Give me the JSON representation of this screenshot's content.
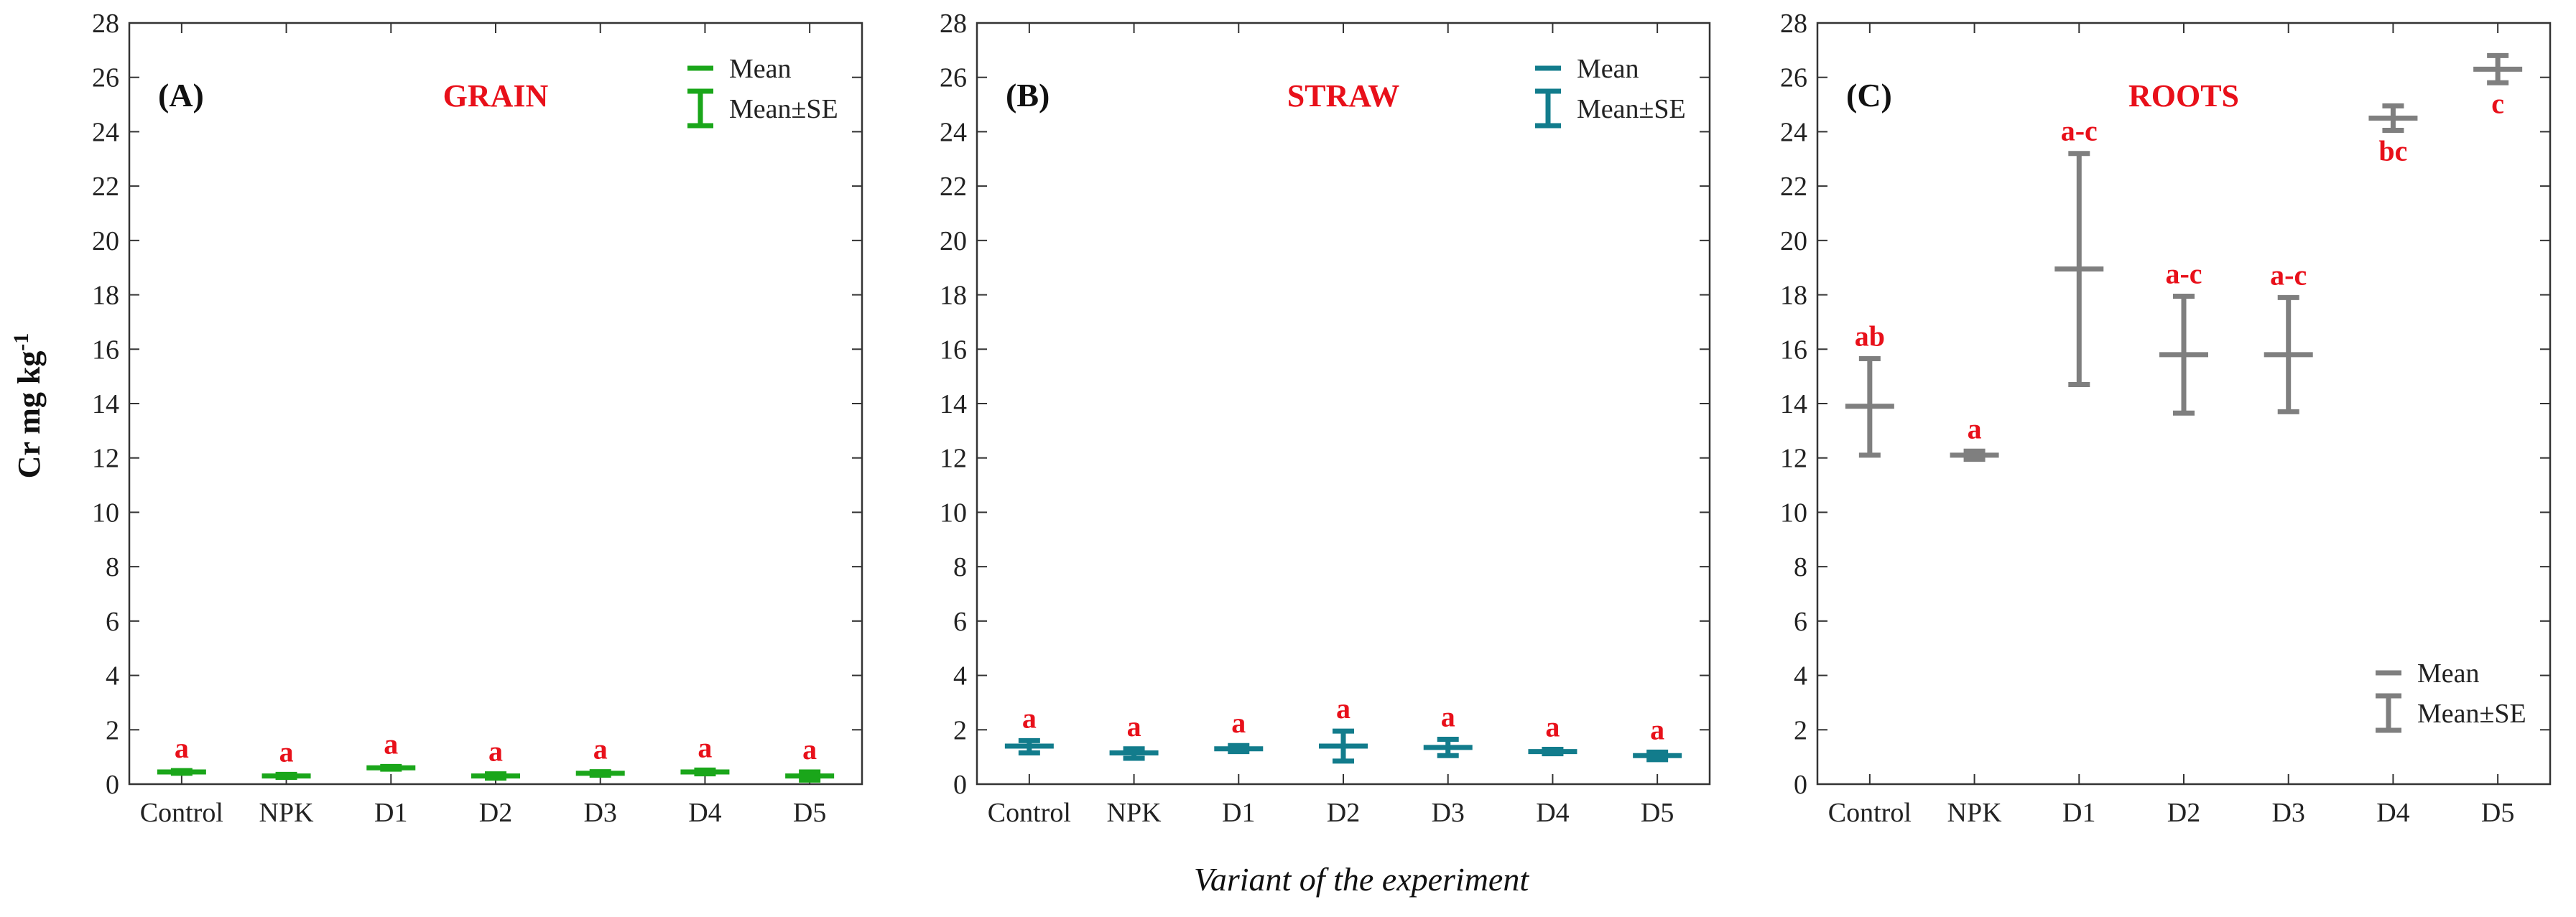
{
  "figure": {
    "ylabel_main": "Cr mg kg",
    "ylabel_sup": "-1",
    "xlabel": "Variant of the experiment"
  },
  "legend": {
    "mean": "Mean",
    "se": "Mean±SE"
  },
  "chart_data": [
    {
      "type": "errorbar",
      "letter": "(A)",
      "title": "GRAIN",
      "title_color": "#e8101a",
      "color": "#1aa61a",
      "legend_position": "top-right",
      "categories": [
        "Control",
        "NPK",
        "D1",
        "D2",
        "D3",
        "D4",
        "D5"
      ],
      "mean": [
        0.45,
        0.3,
        0.6,
        0.3,
        0.4,
        0.45,
        0.3
      ],
      "se_low": [
        0.4,
        0.25,
        0.55,
        0.22,
        0.33,
        0.38,
        0.15
      ],
      "se_high": [
        0.5,
        0.36,
        0.65,
        0.38,
        0.46,
        0.52,
        0.45
      ],
      "labels": [
        "a",
        "a",
        "a",
        "a",
        "a",
        "a",
        "a"
      ],
      "ylim": [
        0,
        28
      ],
      "yticks": [
        "0",
        "2",
        "4",
        "6",
        "8",
        "10",
        "12",
        "14",
        "16",
        "18",
        "20",
        "22",
        "24",
        "26",
        "28"
      ]
    },
    {
      "type": "errorbar",
      "letter": "(B)",
      "title": "STRAW",
      "title_color": "#e8101a",
      "color": "#127c8c",
      "legend_position": "top-right",
      "categories": [
        "Control",
        "NPK",
        "D1",
        "D2",
        "D3",
        "D4",
        "D5"
      ],
      "mean": [
        1.4,
        1.15,
        1.3,
        1.4,
        1.35,
        1.2,
        1.05
      ],
      "se_low": [
        1.15,
        0.95,
        1.2,
        0.85,
        1.05,
        1.12,
        0.9
      ],
      "se_high": [
        1.6,
        1.3,
        1.42,
        1.95,
        1.65,
        1.28,
        1.18
      ],
      "labels": [
        "a",
        "a",
        "a",
        "a",
        "a",
        "a",
        "a"
      ],
      "ylim": [
        0,
        28
      ],
      "yticks": [
        "0",
        "2",
        "4",
        "6",
        "8",
        "10",
        "12",
        "14",
        "16",
        "18",
        "20",
        "22",
        "24",
        "26",
        "28"
      ]
    },
    {
      "type": "errorbar",
      "letter": "(C)",
      "title": "ROOTS",
      "title_color": "#e8101a",
      "color": "#7f7f7f",
      "legend_position": "bottom-right",
      "categories": [
        "Control",
        "NPK",
        "D1",
        "D2",
        "D3",
        "D4",
        "D5"
      ],
      "mean": [
        13.9,
        12.1,
        18.95,
        15.8,
        15.8,
        24.5,
        26.3
      ],
      "se_low": [
        12.1,
        11.95,
        14.7,
        13.65,
        13.7,
        24.05,
        25.8
      ],
      "se_high": [
        15.65,
        12.25,
        23.2,
        17.95,
        17.9,
        24.95,
        26.8
      ],
      "labels": [
        "ab",
        "a",
        "a-c",
        "a-c",
        "a-c",
        "bc",
        "c"
      ],
      "label_placement": [
        "above",
        "above",
        "above",
        "above",
        "above",
        "below",
        "below"
      ],
      "ylim": [
        0,
        28
      ],
      "yticks": [
        "0",
        "2",
        "4",
        "6",
        "8",
        "10",
        "12",
        "14",
        "16",
        "18",
        "20",
        "22",
        "24",
        "26",
        "28"
      ]
    }
  ]
}
